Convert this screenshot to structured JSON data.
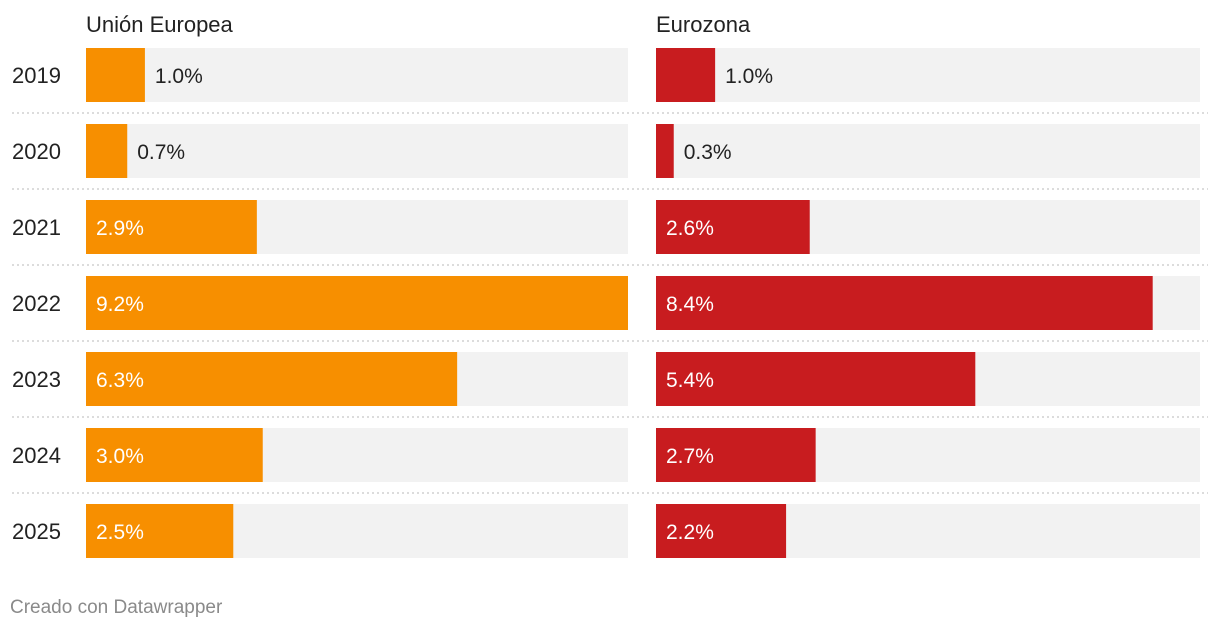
{
  "chart_data": {
    "type": "bar",
    "orientation": "horizontal",
    "categories": [
      "2019",
      "2020",
      "2021",
      "2022",
      "2023",
      "2024",
      "2025"
    ],
    "series": [
      {
        "name": "Unión Europea",
        "values": [
          1.0,
          0.7,
          2.9,
          9.2,
          6.3,
          3.0,
          2.5
        ],
        "labels": [
          "1.0%",
          "0.7%",
          "2.9%",
          "9.2%",
          "6.3%",
          "3.0%",
          "2.5%"
        ],
        "color": "#f78f00"
      },
      {
        "name": "Eurozona",
        "values": [
          1.0,
          0.3,
          2.6,
          8.4,
          5.4,
          2.7,
          2.2
        ],
        "labels": [
          "1.0%",
          "0.3%",
          "2.6%",
          "8.4%",
          "5.4%",
          "2.7%",
          "2.2%"
        ],
        "color": "#c81c1f"
      }
    ],
    "xlim": [
      0,
      9.2
    ],
    "background_bar_color": "#f2f2f2",
    "grid": false,
    "legend": "none"
  },
  "footer": {
    "credit": "Creado con Datawrapper"
  }
}
